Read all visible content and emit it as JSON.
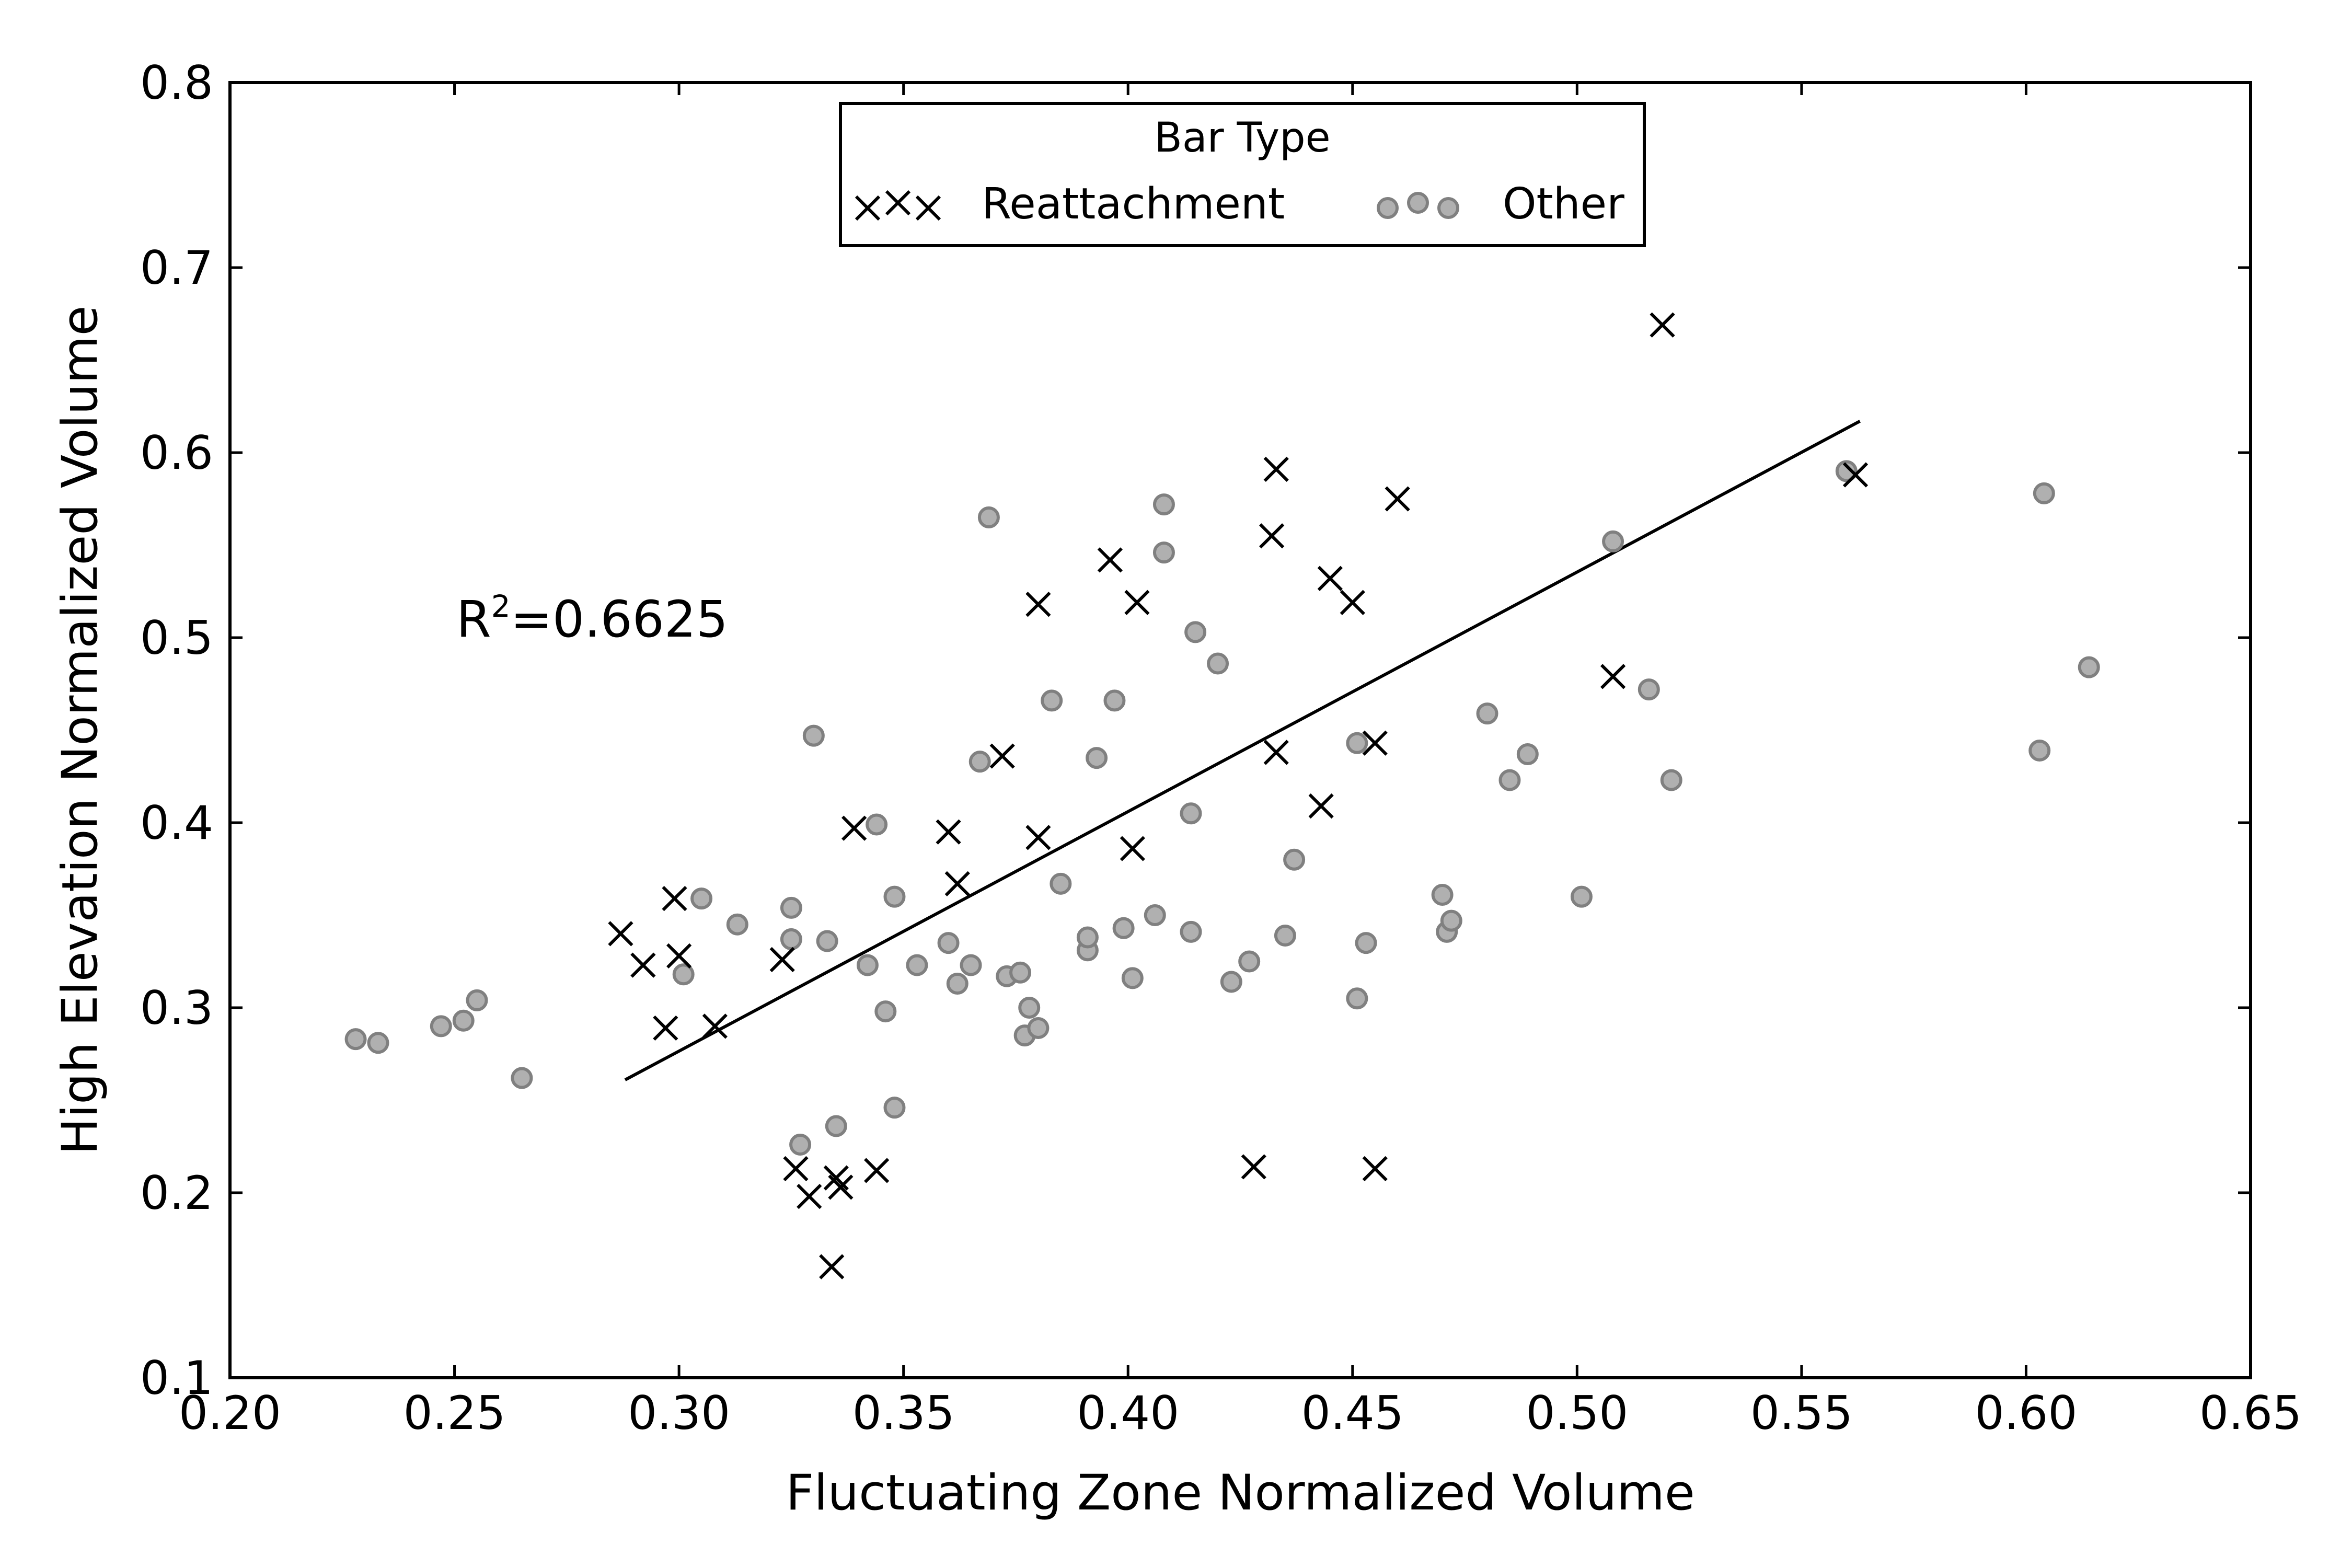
{
  "chart_data": {
    "type": "scatter",
    "xlabel": "Fluctuating Zone Normalized Volume",
    "ylabel": "High Elevation Normalized Volume",
    "xlim": [
      0.2,
      0.65
    ],
    "ylim": [
      0.1,
      0.8
    ],
    "x_ticks": [
      "0.20",
      "0.25",
      "0.30",
      "0.35",
      "0.40",
      "0.45",
      "0.50",
      "0.55",
      "0.60",
      "0.65"
    ],
    "y_ticks": [
      "0.1",
      "0.2",
      "0.3",
      "0.4",
      "0.5",
      "0.6",
      "0.7",
      "0.8"
    ],
    "grid": false,
    "legend": {
      "title": "Bar Type",
      "placement": "top-center",
      "entries": [
        "Reattachment",
        "Other"
      ]
    },
    "annotation": {
      "base": "R",
      "sup": "2",
      "rest": "=0.6625"
    },
    "series": [
      {
        "name": "Reattachment",
        "marker": "x",
        "color": "#000000",
        "points": [
          [
            0.287,
            0.34
          ],
          [
            0.292,
            0.323
          ],
          [
            0.297,
            0.289
          ],
          [
            0.299,
            0.359
          ],
          [
            0.3,
            0.328
          ],
          [
            0.308,
            0.29
          ],
          [
            0.323,
            0.326
          ],
          [
            0.326,
            0.213
          ],
          [
            0.329,
            0.198
          ],
          [
            0.334,
            0.16
          ],
          [
            0.335,
            0.208
          ],
          [
            0.336,
            0.203
          ],
          [
            0.339,
            0.397
          ],
          [
            0.344,
            0.212
          ],
          [
            0.36,
            0.395
          ],
          [
            0.362,
            0.367
          ],
          [
            0.372,
            0.436
          ],
          [
            0.38,
            0.392
          ],
          [
            0.38,
            0.518
          ],
          [
            0.396,
            0.542
          ],
          [
            0.401,
            0.386
          ],
          [
            0.402,
            0.519
          ],
          [
            0.428,
            0.214
          ],
          [
            0.432,
            0.555
          ],
          [
            0.433,
            0.591
          ],
          [
            0.433,
            0.438
          ],
          [
            0.443,
            0.409
          ],
          [
            0.445,
            0.532
          ],
          [
            0.45,
            0.519
          ],
          [
            0.455,
            0.443
          ],
          [
            0.455,
            0.213
          ],
          [
            0.46,
            0.575
          ],
          [
            0.508,
            0.479
          ],
          [
            0.519,
            0.669
          ],
          [
            0.562,
            0.588
          ]
        ]
      },
      {
        "name": "Other",
        "marker": "o",
        "color": "#b0b0b0",
        "edge_color": "#808080",
        "points": [
          [
            0.228,
            0.283
          ],
          [
            0.233,
            0.281
          ],
          [
            0.247,
            0.29
          ],
          [
            0.252,
            0.293
          ],
          [
            0.255,
            0.304
          ],
          [
            0.265,
            0.262
          ],
          [
            0.301,
            0.318
          ],
          [
            0.305,
            0.359
          ],
          [
            0.313,
            0.345
          ],
          [
            0.325,
            0.354
          ],
          [
            0.325,
            0.337
          ],
          [
            0.327,
            0.226
          ],
          [
            0.33,
            0.447
          ],
          [
            0.333,
            0.336
          ],
          [
            0.335,
            0.236
          ],
          [
            0.342,
            0.323
          ],
          [
            0.344,
            0.399
          ],
          [
            0.346,
            0.298
          ],
          [
            0.348,
            0.246
          ],
          [
            0.348,
            0.36
          ],
          [
            0.353,
            0.323
          ],
          [
            0.36,
            0.335
          ],
          [
            0.362,
            0.313
          ],
          [
            0.365,
            0.323
          ],
          [
            0.367,
            0.433
          ],
          [
            0.369,
            0.565
          ],
          [
            0.373,
            0.317
          ],
          [
            0.376,
            0.319
          ],
          [
            0.377,
            0.285
          ],
          [
            0.378,
            0.3
          ],
          [
            0.38,
            0.289
          ],
          [
            0.383,
            0.466
          ],
          [
            0.385,
            0.367
          ],
          [
            0.391,
            0.331
          ],
          [
            0.391,
            0.338
          ],
          [
            0.393,
            0.435
          ],
          [
            0.397,
            0.466
          ],
          [
            0.399,
            0.343
          ],
          [
            0.401,
            0.316
          ],
          [
            0.406,
            0.35
          ],
          [
            0.408,
            0.546
          ],
          [
            0.408,
            0.572
          ],
          [
            0.414,
            0.341
          ],
          [
            0.414,
            0.405
          ],
          [
            0.415,
            0.503
          ],
          [
            0.42,
            0.486
          ],
          [
            0.423,
            0.314
          ],
          [
            0.427,
            0.325
          ],
          [
            0.435,
            0.339
          ],
          [
            0.437,
            0.38
          ],
          [
            0.451,
            0.305
          ],
          [
            0.451,
            0.443
          ],
          [
            0.453,
            0.335
          ],
          [
            0.47,
            0.361
          ],
          [
            0.471,
            0.341
          ],
          [
            0.472,
            0.347
          ],
          [
            0.48,
            0.459
          ],
          [
            0.485,
            0.423
          ],
          [
            0.489,
            0.437
          ],
          [
            0.501,
            0.36
          ],
          [
            0.508,
            0.552
          ],
          [
            0.516,
            0.472
          ],
          [
            0.521,
            0.423
          ],
          [
            0.56,
            0.59
          ],
          [
            0.603,
            0.439
          ],
          [
            0.604,
            0.578
          ],
          [
            0.614,
            0.484
          ]
        ]
      }
    ],
    "trendline": {
      "x": [
        0.288,
        0.563
      ],
      "y": [
        0.261,
        0.617
      ],
      "color": "#000000"
    }
  }
}
